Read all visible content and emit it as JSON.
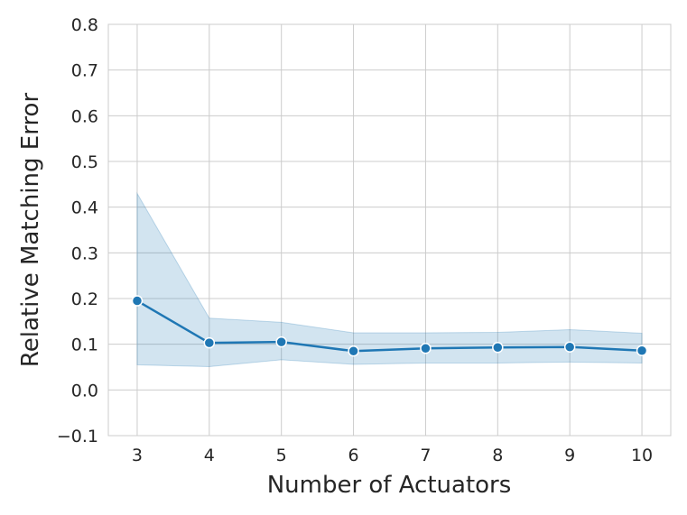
{
  "chart_data": {
    "type": "line",
    "xlabel": "Number of Actuators",
    "ylabel": "Relative Matching Error",
    "x": [
      3,
      4,
      5,
      6,
      7,
      8,
      9,
      10
    ],
    "xlim": [
      2.6,
      10.4
    ],
    "ylim": [
      -0.1,
      0.8
    ],
    "x_ticks": [
      3,
      4,
      5,
      6,
      7,
      8,
      9,
      10
    ],
    "y_ticks": [
      -0.1,
      0.0,
      0.1,
      0.2,
      0.3,
      0.4,
      0.5,
      0.6,
      0.7,
      0.8
    ],
    "y_tick_labels": [
      "−0.1",
      "0.0",
      "0.1",
      "0.2",
      "0.3",
      "0.4",
      "0.5",
      "0.6",
      "0.7",
      "0.8"
    ],
    "grid": true,
    "series": [
      {
        "values": [
          0.195,
          0.103,
          0.105,
          0.085,
          0.091,
          0.093,
          0.094,
          0.086
        ],
        "band_upper": [
          0.43,
          0.157,
          0.148,
          0.125,
          0.125,
          0.126,
          0.132,
          0.124
        ],
        "band_lower": [
          0.055,
          0.051,
          0.066,
          0.056,
          0.059,
          0.059,
          0.061,
          0.059
        ],
        "color": "#1f77b4",
        "band_color": "#1f77b4",
        "marker": "circle"
      }
    ]
  }
}
